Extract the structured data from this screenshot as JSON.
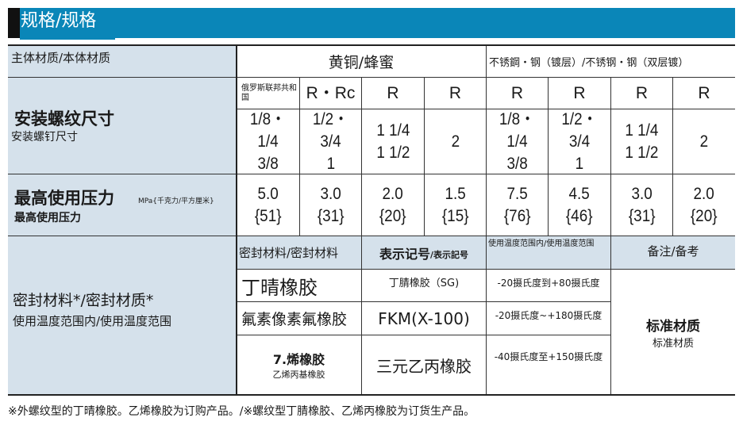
{
  "title": "规格/规格",
  "body_material": {
    "label": "主体材质/本体材质",
    "brass": "黄铜/蜂蜜",
    "stainless": "不锈鋼・钢（镀层）/不锈钢・钢（双层镀）"
  },
  "thread": {
    "label_main": "安装螺纹尺寸",
    "label_sub": "安装螺钉尺寸",
    "types": [
      "俄罗斯联邦共和国",
      "R・Rc",
      "R",
      "R",
      "R",
      "R",
      "R",
      "R"
    ],
    "sizes": [
      [
        "1/8・1/4",
        "3/8"
      ],
      [
        "1/2・3/4",
        "1"
      ],
      [
        "1 1/4",
        "1 1/2"
      ],
      [
        "2",
        ""
      ],
      [
        "1/8・1/4",
        "3/8"
      ],
      [
        "1/2・3/4",
        "1"
      ],
      [
        "1 1/4",
        "1 1/2"
      ],
      [
        "2",
        ""
      ]
    ]
  },
  "pressure": {
    "label_main": "最高使用压力",
    "label_sub": "最高使用压力",
    "unit": "MPa{千克力/平方厘米}",
    "values": [
      [
        "5.0",
        "{51}"
      ],
      [
        "3.0",
        "{31}"
      ],
      [
        "2.0",
        "{20}"
      ],
      [
        "1.5",
        "{15}"
      ],
      [
        "7.5",
        "{76}"
      ],
      [
        "4.5",
        "{46}"
      ],
      [
        "3.0",
        "{31}"
      ],
      [
        "2.0",
        "{20}"
      ]
    ]
  },
  "seal": {
    "label_main": "密封材料*/密封材质*",
    "label_sub": "使用温度范围内/使用温度范围",
    "headers": {
      "material": "密封材料/密封材料",
      "code_main": "表示记号",
      "code_sub": "/表示記号",
      "temp": "使用温度范围内/使用温度范围",
      "remarks": "备注/备考"
    },
    "rows": [
      {
        "material": "丁晴橡胶",
        "material_sub": "",
        "code": "丁腈橡胶（SG)",
        "temp": "-20摄氏度到+80摄氏度"
      },
      {
        "material": "氟素像素氟橡胶",
        "material_sub": "",
        "code": "FKM(X-100)",
        "temp": "-20摄氏度~+180摄氏度"
      },
      {
        "material": "7.烯橡胶",
        "material_sub": "乙烯丙基橡胶",
        "code": "三元乙丙橡胶",
        "temp": "-40摄氏度至+150摄氏度"
      }
    ],
    "remarks_main": "标准材质",
    "remarks_sub": "标准材质"
  },
  "footnote": "※外螺纹型的丁晴橡胶。乙烯橡胶为订购产品。/※螺纹型丁腈橡胶、乙烯丙橡胶为订货生产品。",
  "colors": {
    "title_bar": "#0a86b8",
    "label_bg": "#d5e1eb"
  }
}
